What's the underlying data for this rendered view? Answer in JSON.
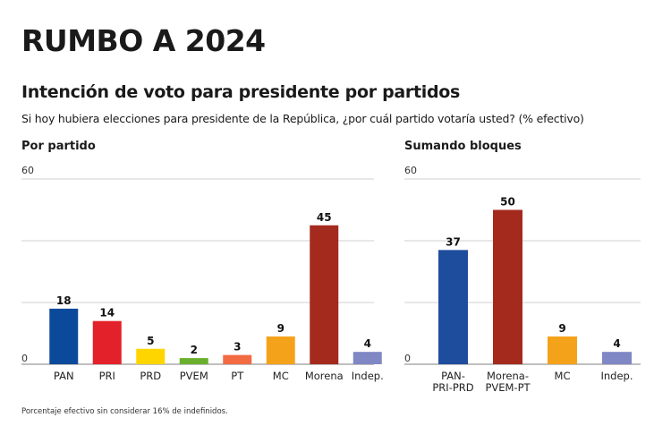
{
  "header": {
    "title": "RUMBO A 2024",
    "subtitle": "Intención de voto para presidente por partidos",
    "question": "Si hoy hubiera elecciones para presidente de la República, ¿por cuál partido votaría usted? (% efectivo)"
  },
  "footnote": "Porcentaje efectivo sin considerar 16% de indefinidos.",
  "chart_data": [
    {
      "type": "bar",
      "title": "Por partido",
      "categories": [
        "PAN",
        "PRI",
        "PRD",
        "PVEM",
        "PT",
        "MC",
        "Morena",
        "Indep."
      ],
      "values": [
        18,
        14,
        5,
        2,
        3,
        9,
        45,
        4
      ],
      "colors": [
        "#0b4a9a",
        "#e3212a",
        "#ffd500",
        "#6ab02e",
        "#f26b43",
        "#f5a21b",
        "#a52a1e",
        "#7f87c4"
      ],
      "ylim": [
        0,
        60
      ],
      "ytick_labels": [
        "0",
        "60"
      ],
      "gridlines": [
        0,
        20,
        40,
        60
      ],
      "xlabel": "",
      "ylabel": ""
    },
    {
      "type": "bar",
      "title": "Sumando bloques",
      "categories": [
        [
          "PAN-",
          "PRI-PRD"
        ],
        [
          "Morena-",
          "PVEM-PT"
        ],
        [
          "MC"
        ],
        [
          "Indep."
        ]
      ],
      "values": [
        37,
        50,
        9,
        4
      ],
      "colors": [
        "#1f4d9e",
        "#a52a1e",
        "#f5a21b",
        "#7f87c4"
      ],
      "ylim": [
        0,
        60
      ],
      "ytick_labels": [
        "0",
        "60"
      ],
      "gridlines": [
        0,
        20,
        40,
        60
      ],
      "xlabel": "",
      "ylabel": ""
    }
  ]
}
